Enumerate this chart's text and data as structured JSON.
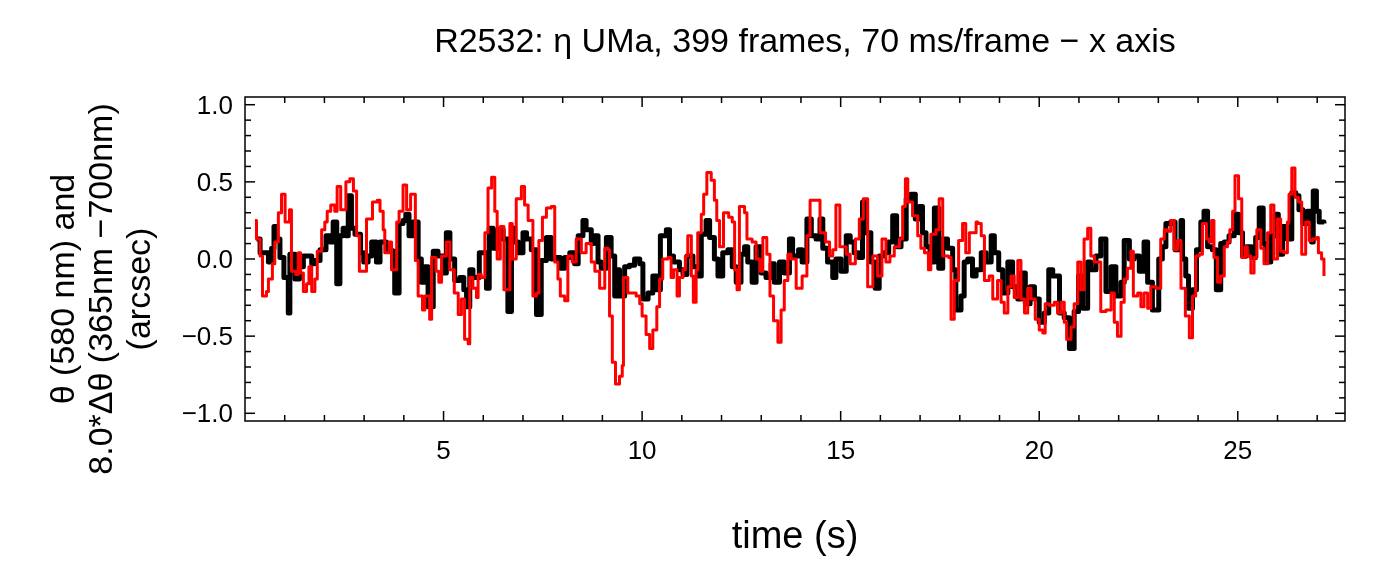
{
  "chart_data": {
    "type": "step",
    "title": "R2532: η UMa, 399 frames, 70 ms/frame − x axis",
    "xlabel": "time (s)",
    "ylabel": "θ (580 nm) and\n8.0*Δθ (365nm −700nm)\n(arcsec)",
    "xlim": [
      0,
      27.7
    ],
    "ylim": [
      -1.05,
      1.05
    ],
    "xticks": [
      {
        "value": 1,
        "label": null
      },
      {
        "value": 2,
        "label": null
      },
      {
        "value": 3,
        "label": null
      },
      {
        "value": 4,
        "label": null
      },
      5,
      {
        "value": 6,
        "label": null
      },
      {
        "value": 7,
        "label": null
      },
      {
        "value": 8,
        "label": null
      },
      {
        "value": 9,
        "label": null
      },
      10,
      {
        "value": 11,
        "label": null
      },
      {
        "value": 12,
        "label": null
      },
      {
        "value": 13,
        "label": null
      },
      {
        "value": 14,
        "label": null
      },
      15,
      {
        "value": 16,
        "label": null
      },
      {
        "value": 17,
        "label": null
      },
      {
        "value": 18,
        "label": null
      },
      {
        "value": 19,
        "label": null
      },
      20,
      {
        "value": 21,
        "label": null
      },
      {
        "value": 22,
        "label": null
      },
      {
        "value": 23,
        "label": null
      },
      {
        "value": 24,
        "label": null
      },
      25,
      {
        "value": 26,
        "label": null
      },
      {
        "value": 27,
        "label": null
      }
    ],
    "yticks": [
      {
        "value": -1,
        "label": "−1.0"
      },
      {
        "value": -0.9,
        "label": null
      },
      {
        "value": -0.8,
        "label": null
      },
      {
        "value": -0.7,
        "label": null
      },
      {
        "value": -0.6,
        "label": null
      },
      {
        "value": -0.5,
        "label": "−0.5"
      },
      {
        "value": -0.4,
        "label": null
      },
      {
        "value": -0.3,
        "label": null
      },
      {
        "value": -0.2,
        "label": null
      },
      {
        "value": -0.1,
        "label": null
      },
      {
        "value": 0,
        "label": "0.0"
      },
      {
        "value": 0.1,
        "label": null
      },
      {
        "value": 0.2,
        "label": null
      },
      {
        "value": 0.3,
        "label": null
      },
      {
        "value": 0.4,
        "label": null
      },
      {
        "value": 0.5,
        "label": "0.5"
      },
      {
        "value": 0.6,
        "label": null
      },
      {
        "value": 0.7,
        "label": null
      },
      {
        "value": 0.8,
        "label": null
      },
      {
        "value": 0.9,
        "label": null
      },
      {
        "value": 1,
        "label": "1.0"
      }
    ],
    "series": [
      {
        "color": "#000000",
        "x": [
          0.29,
          0.38,
          0.5,
          0.59,
          0.67,
          0.73,
          0.8,
          0.88,
          0.98,
          1.09,
          1.13,
          1.26,
          1.37,
          1.47,
          1.59,
          1.68,
          1.76,
          1.89,
          2.04,
          2.14,
          2.22,
          2.31,
          2.39,
          2.47,
          2.54,
          2.6,
          2.68,
          2.77,
          2.91,
          2.99,
          3.1,
          3.19,
          3.31,
          3.4,
          3.56,
          3.69,
          3.77,
          3.88,
          3.98,
          4.05,
          4.13,
          4.23,
          4.36,
          4.44,
          4.53,
          4.61,
          4.74,
          4.86,
          4.99,
          5.07,
          5.16,
          5.28,
          5.41,
          5.51,
          5.58,
          5.66,
          5.74,
          5.9,
          5.98,
          6.08,
          6.15,
          6.25,
          6.37,
          6.5,
          6.62,
          6.71,
          6.79,
          6.88,
          7.0,
          7.09,
          7.21,
          7.34,
          7.46,
          7.59,
          7.71,
          7.84,
          7.94,
          8.05,
          8.18,
          8.3,
          8.39,
          8.51,
          8.59,
          8.72,
          8.78,
          8.89,
          8.97,
          9.1,
          9.22,
          9.31,
          9.39,
          9.43,
          9.56,
          9.68,
          9.81,
          9.94,
          10.02,
          10.15,
          10.27,
          10.37,
          10.46,
          10.61,
          10.69,
          10.79,
          10.94,
          11.03,
          11.13,
          11.28,
          11.4,
          11.49,
          11.61,
          11.7,
          11.82,
          11.91,
          12.03,
          12.16,
          12.27,
          12.37,
          12.49,
          12.58,
          12.66,
          12.77,
          12.87,
          13.0,
          13.12,
          13.25,
          13.33,
          13.46,
          13.58,
          13.71,
          13.79,
          13.94,
          14.03,
          14.15,
          14.26,
          14.38,
          14.48,
          14.55,
          14.67,
          14.8,
          14.88,
          15.01,
          15.14,
          15.24,
          15.34,
          15.45,
          15.55,
          15.64,
          15.76,
          15.87,
          15.97,
          16.1,
          16.21,
          16.31,
          16.41,
          16.52,
          16.65,
          16.77,
          16.88,
          16.98,
          17.06,
          17.15,
          17.25,
          17.36,
          17.47,
          17.57,
          17.69,
          17.82,
          17.9,
          18.03,
          18.11,
          18.2,
          18.32,
          18.41,
          18.54,
          18.66,
          18.79,
          18.87,
          18.98,
          19.08,
          19.21,
          19.33,
          19.46,
          19.54,
          19.65,
          19.77,
          19.88,
          20.0,
          20.13,
          20.24,
          20.34,
          20.44,
          20.51,
          20.63,
          20.76,
          20.88,
          20.99,
          21.09,
          21.22,
          21.3,
          21.43,
          21.55,
          21.68,
          21.81,
          21.93,
          22.06,
          22.14,
          22.27,
          22.39,
          22.52,
          22.64,
          22.73,
          22.85,
          23.01,
          23.1,
          23.19,
          23.31,
          23.42,
          23.57,
          23.61,
          23.69,
          23.76,
          23.86,
          23.96,
          24.07,
          24.15,
          24.24,
          24.36,
          24.46,
          24.57,
          24.66,
          24.78,
          24.91,
          25.02,
          25.12,
          25.22,
          25.35,
          25.45,
          25.54,
          25.64,
          25.7,
          25.83,
          25.94,
          26.02,
          26.13,
          26.25,
          26.36,
          26.46,
          26.54,
          26.64,
          26.75,
          26.86,
          26.9,
          26.98,
          27.05,
          27.17
        ],
        "values": [
          0.13,
          0.04,
          0.04,
          -0.02,
          0.07,
          0.21,
          0.13,
          0.01,
          -0.12,
          -0.35,
          0.03,
          -0.13,
          -0.05,
          0.02,
          0.02,
          -0.03,
          -0.01,
          0.06,
          0.15,
          0.11,
          0.24,
          -0.16,
          0.15,
          0.2,
          0.15,
          0.41,
          0.2,
          0.16,
          0.04,
          -0.02,
          0.02,
          0.11,
          -0.02,
          0.11,
          0.06,
          0.05,
          -0.22,
          0.23,
          0.25,
          0.29,
          0.15,
          0.24,
          0.0,
          -0.15,
          -0.05,
          -0.31,
          0.05,
          0.02,
          -0.09,
          0.17,
          0.0,
          -0.14,
          -0.12,
          -0.2,
          -0.31,
          -0.07,
          -0.12,
          0.04,
          0.04,
          -0.19,
          0.2,
          0.07,
          0.19,
          0.13,
          -0.34,
          0.2,
          0.11,
          0.04,
          0.17,
          0.13,
          0.06,
          -0.36,
          -0.01,
          0.14,
          0.0,
          0.01,
          -0.06,
          0.01,
          0.04,
          -0.03,
          0.15,
          0.25,
          0.19,
          0.1,
          0.15,
          -0.02,
          -0.06,
          0.14,
          0.02,
          -0.24,
          -0.07,
          -0.24,
          -0.05,
          -0.04,
          0.0,
          -0.03,
          -0.26,
          -0.22,
          -0.11,
          -0.2,
          0.15,
          0.19,
          0.02,
          -0.02,
          -0.07,
          -0.1,
          0.02,
          -0.05,
          -0.11,
          0.16,
          0.25,
          0.14,
          0.0,
          -0.11,
          0.04,
          0.06,
          -0.05,
          -0.15,
          0.03,
          0.08,
          -0.02,
          -0.15,
          0.08,
          -0.09,
          -0.12,
          -0.03,
          -0.15,
          -0.02,
          -0.09,
          0.13,
          0.02,
          0.06,
          -0.02,
          0.26,
          0.15,
          0.13,
          0.26,
          0.07,
          -0.02,
          -0.12,
          0.0,
          -0.08,
          0.15,
          0.11,
          0.04,
          0.01,
          0.37,
          0.17,
          -0.02,
          -0.19,
          0.02,
          0.04,
          0.11,
          0.28,
          0.08,
          0.13,
          0.39,
          0.42,
          0.26,
          0.34,
          0.17,
          0.08,
          -0.02,
          0.33,
          -0.06,
          0.13,
          0.07,
          -0.07,
          -0.33,
          -0.24,
          -0.02,
          0.0,
          -0.11,
          -0.07,
          0.04,
          -0.02,
          0.15,
          0.04,
          -0.07,
          -0.22,
          -0.02,
          -0.18,
          -0.26,
          -0.09,
          -0.29,
          -0.18,
          -0.26,
          -0.41,
          -0.35,
          -0.07,
          -0.11,
          -0.11,
          -0.35,
          -0.38,
          -0.58,
          -0.34,
          -0.11,
          -0.32,
          -0.02,
          -0.07,
          0.02,
          0.13,
          -0.21,
          -0.05,
          -0.24,
          -0.15,
          0.12,
          0.0,
          0.02,
          -0.08,
          0.11,
          -0.15,
          -0.33,
          0.0,
          0.08,
          0.23,
          0.24,
          0.06,
          0.25,
          0.0,
          -0.11,
          -0.32,
          -0.2,
          0.06,
          0.24,
          0.31,
          0.08,
          0.06,
          -0.2,
          0.1,
          0.11,
          0.15,
          0.29,
          0.17,
          0.02,
          0.08,
          0.01,
          0.14,
          0.33,
          0.1,
          -0.02,
          0.15,
          0.29,
          0.03,
          0.21,
          0.13,
          0.43,
          0.41,
          0.32,
          0.23,
          0.31,
          0.11,
          0.44,
          0.31,
          0.24,
          0.23
        ]
      },
      {
        "color": "#ff0000",
        "x": [
          0.25,
          0.29,
          0.38,
          0.44,
          0.54,
          0.59,
          0.69,
          0.75,
          0.84,
          0.92,
          1.01,
          1.12,
          1.17,
          1.28,
          1.34,
          1.4,
          1.47,
          1.55,
          1.61,
          1.68,
          1.76,
          1.82,
          1.93,
          2.01,
          2.07,
          2.16,
          2.26,
          2.32,
          2.41,
          2.54,
          2.64,
          2.73,
          2.81,
          2.88,
          2.99,
          3.06,
          3.21,
          3.33,
          3.4,
          3.48,
          3.52,
          3.63,
          3.69,
          3.82,
          3.88,
          3.98,
          4.07,
          4.17,
          4.29,
          4.36,
          4.47,
          4.53,
          4.65,
          4.7,
          4.81,
          4.88,
          4.95,
          5.07,
          5.16,
          5.27,
          5.37,
          5.45,
          5.53,
          5.62,
          5.66,
          5.74,
          5.83,
          5.87,
          5.95,
          6.04,
          6.12,
          6.21,
          6.29,
          6.35,
          6.43,
          6.52,
          6.67,
          6.73,
          6.83,
          6.96,
          7.04,
          7.13,
          7.25,
          7.34,
          7.4,
          7.49,
          7.59,
          7.71,
          7.8,
          7.88,
          7.94,
          8.05,
          8.13,
          8.24,
          8.34,
          8.47,
          8.59,
          8.72,
          8.81,
          8.93,
          9.06,
          9.14,
          9.18,
          9.25,
          9.33,
          9.43,
          9.5,
          9.53,
          9.64,
          9.85,
          9.94,
          10.0,
          10.1,
          10.19,
          10.27,
          10.37,
          10.44,
          10.52,
          10.65,
          10.73,
          10.79,
          10.88,
          10.94,
          11.03,
          11.09,
          11.15,
          11.24,
          11.29,
          11.36,
          11.4,
          11.49,
          11.55,
          11.63,
          11.74,
          11.82,
          11.88,
          11.95,
          12.05,
          12.18,
          12.27,
          12.33,
          12.39,
          12.45,
          12.58,
          12.64,
          12.77,
          12.87,
          12.97,
          13.04,
          13.14,
          13.22,
          13.31,
          13.42,
          13.5,
          13.58,
          13.67,
          13.75,
          13.88,
          14.03,
          14.15,
          14.23,
          14.42,
          14.48,
          14.62,
          14.72,
          14.8,
          14.88,
          14.98,
          15.14,
          15.24,
          15.37,
          15.47,
          15.57,
          15.68,
          15.81,
          15.93,
          16.04,
          16.14,
          16.24,
          16.35,
          16.48,
          16.56,
          16.63,
          16.69,
          16.81,
          16.94,
          17.02,
          17.11,
          17.21,
          17.27,
          17.4,
          17.48,
          17.57,
          17.72,
          17.78,
          17.86,
          17.97,
          18.07,
          18.15,
          18.24,
          18.41,
          18.45,
          18.54,
          18.62,
          18.74,
          18.83,
          18.95,
          19.04,
          19.12,
          19.21,
          19.29,
          19.37,
          19.46,
          19.54,
          19.63,
          19.71,
          19.79,
          19.9,
          20.0,
          20.09,
          20.15,
          20.25,
          20.38,
          20.46,
          20.55,
          20.63,
          20.69,
          20.8,
          20.88,
          20.97,
          21.05,
          21.13,
          21.22,
          21.3,
          21.39,
          21.5,
          21.55,
          21.68,
          21.81,
          21.89,
          21.97,
          22.06,
          22.14,
          22.22,
          22.31,
          22.37,
          22.48,
          22.56,
          22.64,
          22.73,
          22.81,
          22.94,
          23.06,
          23.15,
          23.23,
          23.31,
          23.4,
          23.48,
          23.57,
          23.68,
          23.78,
          23.86,
          23.94,
          24.03,
          24.11,
          24.21,
          24.28,
          24.34,
          24.4,
          24.49,
          24.57,
          24.66,
          24.74,
          24.8,
          24.87,
          24.93,
          25.02,
          25.1,
          25.19,
          25.24,
          25.33,
          25.41,
          25.48,
          25.58,
          25.66,
          25.75,
          25.83,
          25.91,
          26.0,
          26.08,
          26.17,
          26.25,
          26.29,
          26.36,
          26.44,
          26.53,
          26.61,
          26.71,
          26.8,
          26.88,
          26.98,
          27.03,
          27.11,
          27.17
        ],
        "values": [
          0.25,
          0.13,
          0.02,
          -0.24,
          -0.21,
          -0.13,
          -0.03,
          0.11,
          0.3,
          0.42,
          0.24,
          0.32,
          -0.08,
          -0.1,
          0.04,
          -0.09,
          -0.21,
          -0.16,
          -0.05,
          -0.21,
          -0.13,
          0.05,
          0.19,
          0.24,
          0.31,
          0.35,
          0.31,
          0.47,
          0.32,
          0.5,
          0.52,
          0.44,
          0.15,
          -0.08,
          -0.08,
          0.26,
          0.37,
          0.38,
          0.31,
          0.19,
          0.04,
          0.11,
          -0.07,
          0.24,
          0.31,
          0.48,
          0.32,
          0.42,
          -0.01,
          -0.24,
          -0.33,
          -0.24,
          -0.39,
          0.01,
          -0.08,
          -0.15,
          0.02,
          0.11,
          -0.07,
          -0.22,
          -0.36,
          -0.26,
          -0.52,
          -0.55,
          -0.12,
          -0.19,
          -0.25,
          -0.1,
          -0.12,
          0.17,
          0.46,
          0.53,
          0.31,
          0.0,
          0.21,
          -0.2,
          0.23,
          0.0,
          0.39,
          0.47,
          0.35,
          0.25,
          -0.24,
          -0.22,
          0.12,
          0.27,
          0.33,
          0.34,
          -0.02,
          -0.13,
          -0.24,
          -0.27,
          0.02,
          -0.02,
          0.13,
          0.04,
          0.1,
          -0.02,
          -0.08,
          -0.19,
          0.07,
          0.06,
          -0.37,
          -0.67,
          -0.81,
          -0.76,
          -0.69,
          -0.12,
          -0.22,
          -0.24,
          -0.29,
          -0.37,
          -0.49,
          -0.58,
          -0.46,
          -0.31,
          -0.13,
          0.0,
          0.01,
          -0.12,
          -0.07,
          -0.24,
          -0.12,
          -0.07,
          0.02,
          0.15,
          -0.11,
          -0.28,
          -0.07,
          0.17,
          0.29,
          0.42,
          0.56,
          0.51,
          0.38,
          0.25,
          0.08,
          0.3,
          0.27,
          0.24,
          -0.07,
          -0.2,
          0.34,
          0.3,
          0.13,
          0.11,
          0.0,
          -0.08,
          0.14,
          0.03,
          -0.24,
          -0.4,
          -0.54,
          -0.33,
          -0.14,
          0.03,
          0.0,
          -0.19,
          -0.11,
          0.15,
          0.38,
          0.38,
          0.17,
          0.11,
          0.02,
          0.06,
          0.35,
          0.08,
          0.03,
          -0.03,
          0.13,
          0.26,
          0.39,
          -0.18,
          0.02,
          -0.11,
          0.13,
          -0.02,
          0.02,
          0.08,
          0.13,
          0.34,
          0.52,
          0.37,
          0.28,
          0.15,
          0.07,
          0.04,
          -0.07,
          0.16,
          0.19,
          0.39,
          0.02,
          0.01,
          -0.39,
          -0.14,
          0.12,
          0.23,
          0.04,
          0.17,
          0.24,
          0.23,
          0.15,
          -0.14,
          -0.11,
          -0.26,
          -0.14,
          -0.28,
          -0.35,
          -0.18,
          -0.11,
          -0.25,
          -0.01,
          -0.26,
          -0.35,
          -0.19,
          -0.26,
          -0.39,
          -0.46,
          -0.48,
          -0.29,
          -0.3,
          -0.28,
          -0.35,
          -0.28,
          -0.41,
          -0.52,
          -0.44,
          -0.29,
          -0.02,
          -0.2,
          0.13,
          0.2,
          0.02,
          -0.02,
          -0.02,
          -0.34,
          -0.33,
          -0.22,
          -0.41,
          -0.5,
          -0.28,
          -0.13,
          -0.06,
          0.05,
          -0.24,
          -0.22,
          -0.31,
          -0.22,
          -0.32,
          -0.18,
          -0.19,
          0.13,
          0.19,
          0.18,
          0.25,
          0.06,
          0.12,
          -0.19,
          -0.37,
          -0.51,
          -0.24,
          0.02,
          0.03,
          0.23,
          0.13,
          0.11,
          0.25,
          0.01,
          -0.15,
          -0.11,
          0.08,
          0.11,
          0.19,
          0.31,
          0.54,
          0.39,
          0.01,
          0.08,
          0.02,
          -0.09,
          0.01,
          0.19,
          0.07,
          -0.03,
          0.17,
          0.35,
          0.0,
          0.26,
          0.05,
          0.04,
          0.24,
          0.42,
          0.59,
          0.4,
          0.37,
          0.03,
          0.24,
          0.12,
          0.13,
          0.14,
          0.04,
          0.0,
          -0.11
        ]
      }
    ]
  }
}
